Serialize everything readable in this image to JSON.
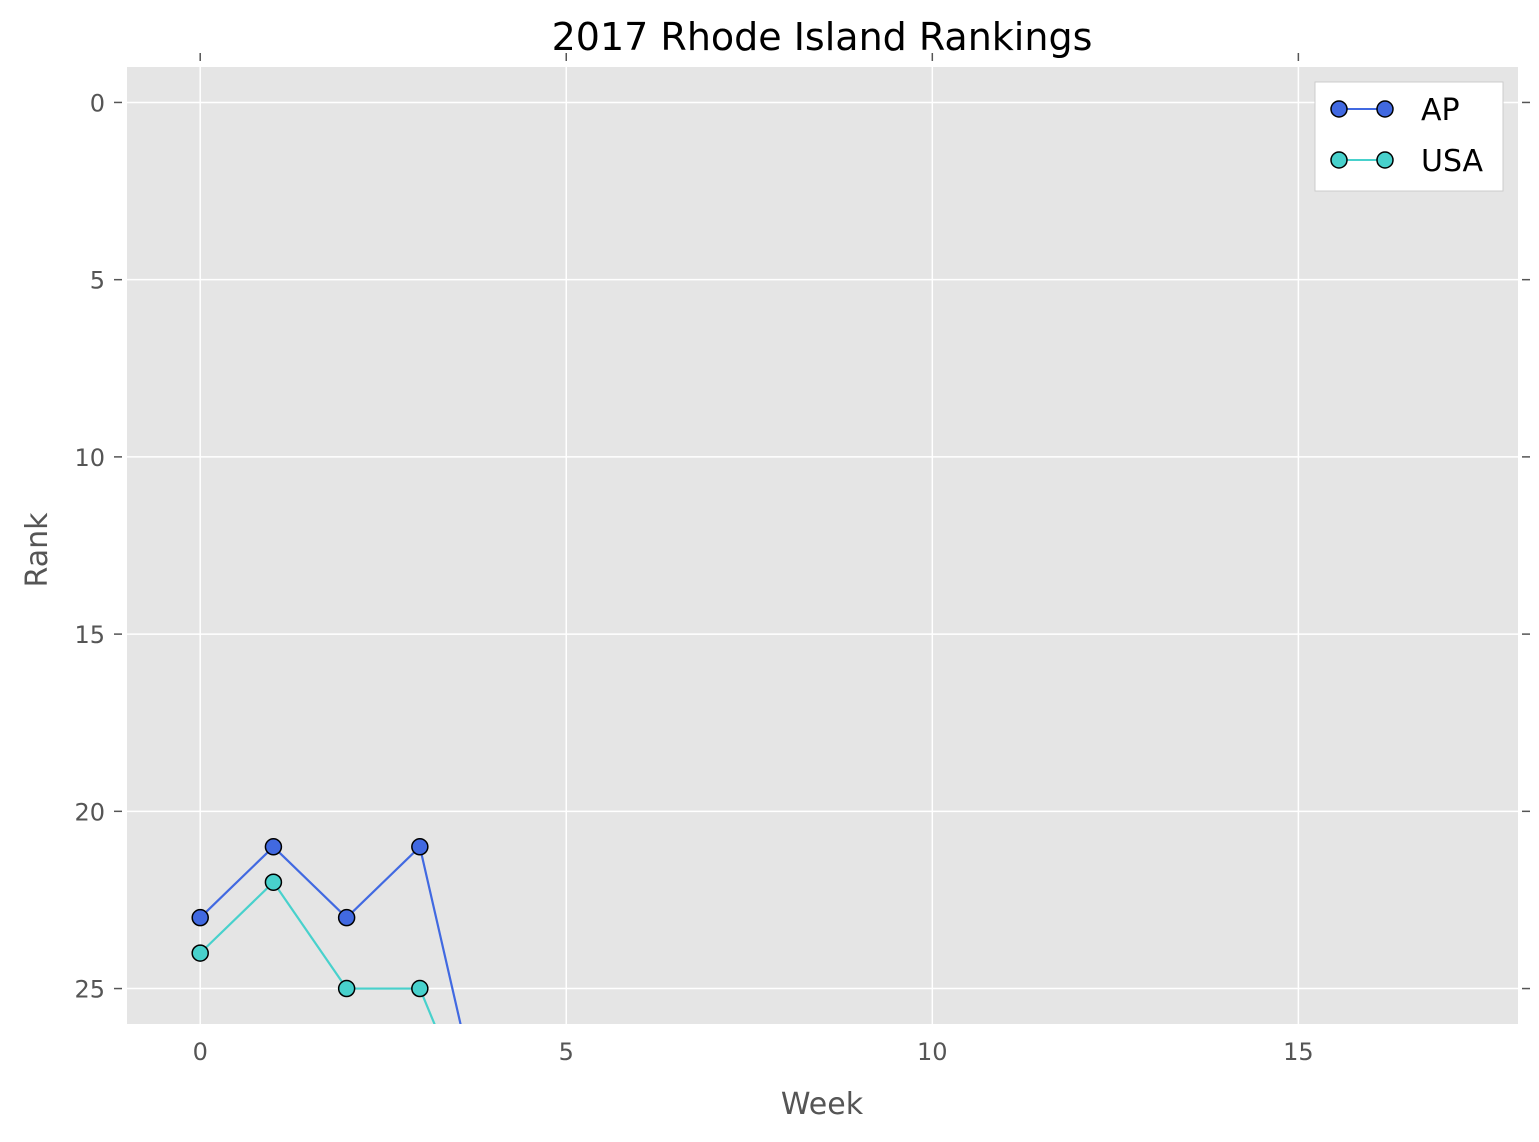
{
  "chart_data": {
    "type": "line",
    "title": "2017 Rhode Island Rankings",
    "xlabel": "Week",
    "ylabel": "Rank",
    "xlim": [
      -1,
      18
    ],
    "ylim": [
      26,
      -1
    ],
    "y_inverted": true,
    "xticks": [
      "0",
      "5",
      "10",
      "15"
    ],
    "yticks": [
      "0",
      "5",
      "10",
      "15",
      "20",
      "25"
    ],
    "grid": true,
    "legend_position": "top-right",
    "background_color": "#e5e5e5",
    "series": [
      {
        "name": "AP",
        "color": "#4169e1",
        "x": [
          0,
          1,
          2,
          3,
          4
        ],
        "y": [
          23,
          21,
          23,
          21,
          30
        ]
      },
      {
        "name": "USA",
        "color": "#48d1cc",
        "x": [
          0,
          1,
          2,
          3,
          4
        ],
        "y": [
          24,
          22,
          25,
          25,
          30
        ]
      }
    ]
  }
}
